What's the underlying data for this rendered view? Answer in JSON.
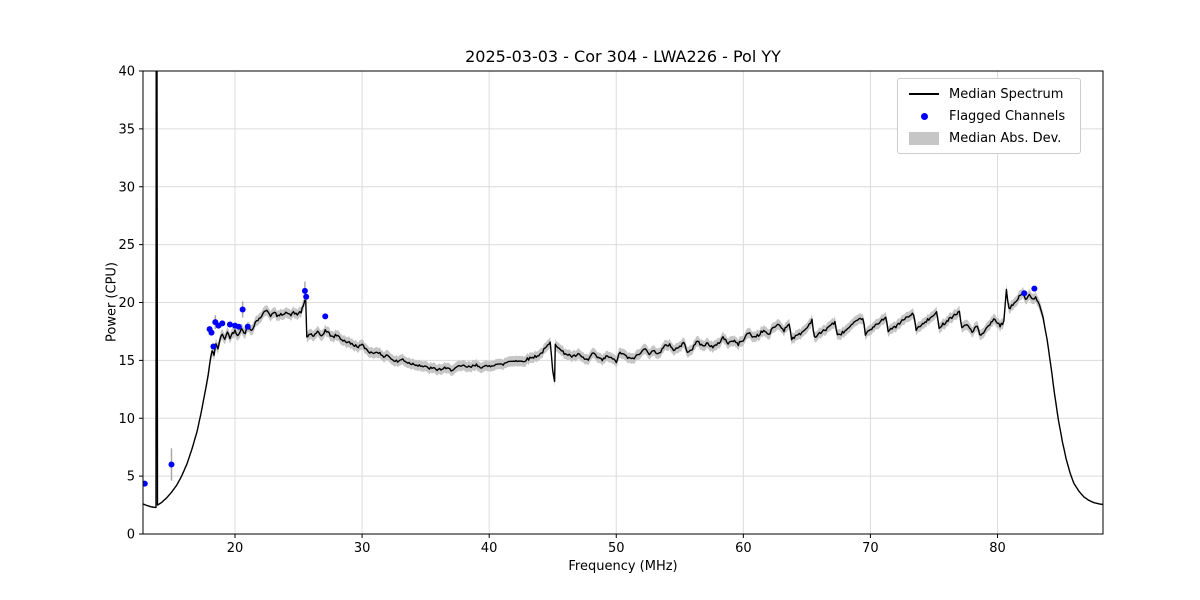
{
  "chart_data": {
    "type": "line",
    "title": "2025-03-03 - Cor 304 - LWA226 - Pol YY",
    "xlabel": "Frequency (MHz)",
    "ylabel": "Power (CPU)",
    "xlim": [
      12.76,
      88.3
    ],
    "ylim": [
      0,
      40
    ],
    "xticks": [
      20,
      30,
      40,
      50,
      60,
      70,
      80
    ],
    "yticks": [
      0,
      5,
      10,
      15,
      20,
      25,
      30,
      35,
      40
    ],
    "grid": true,
    "colors": {
      "median_line": "#000000",
      "flagged": "#0000ff",
      "band": "#c6c6c6",
      "grid": "#dcdcdc",
      "errorbar": "#aaaaaa"
    },
    "legend": {
      "position": "upper right",
      "entries": [
        "Median Spectrum",
        "Flagged Channels",
        "Median Abs. Dev."
      ]
    },
    "noise": {
      "amplitude": 0.13,
      "range": [
        17.8,
        83.6
      ],
      "seed": 42,
      "step": 0.1
    },
    "band": {
      "halfwidth": 0.45,
      "range": [
        17.8,
        83.6
      ],
      "halfwidth_outside": 0.06
    },
    "series": [
      {
        "name": "Median Spectrum",
        "kind": "line",
        "points": [
          [
            12.76,
            2.6
          ],
          [
            13.1,
            2.45
          ],
          [
            13.4,
            2.35
          ],
          [
            13.7,
            2.3
          ],
          [
            13.78,
            2.3
          ],
          [
            13.8,
            41
          ],
          [
            13.86,
            41
          ],
          [
            13.9,
            2.5
          ],
          [
            14.2,
            2.7
          ],
          [
            14.6,
            3.1
          ],
          [
            15.0,
            3.6
          ],
          [
            15.4,
            4.2
          ],
          [
            15.8,
            5.0
          ],
          [
            16.2,
            6.0
          ],
          [
            16.6,
            7.3
          ],
          [
            17.0,
            8.8
          ],
          [
            17.3,
            10.3
          ],
          [
            17.6,
            12.0
          ],
          [
            17.9,
            13.8
          ],
          [
            18.1,
            15.3
          ],
          [
            18.2,
            15.9
          ],
          [
            18.35,
            15.5
          ],
          [
            18.5,
            16.4
          ],
          [
            18.65,
            15.9
          ],
          [
            18.8,
            16.8
          ],
          [
            19.0,
            17.2
          ],
          [
            19.2,
            16.9
          ],
          [
            19.4,
            17.4
          ],
          [
            19.6,
            17.0
          ],
          [
            19.8,
            17.3
          ],
          [
            20.0,
            17.6
          ],
          [
            20.2,
            17.2
          ],
          [
            20.5,
            17.7
          ],
          [
            20.8,
            17.4
          ],
          [
            21.0,
            17.9
          ],
          [
            21.3,
            17.6
          ],
          [
            21.6,
            18.3
          ],
          [
            21.9,
            18.6
          ],
          [
            22.2,
            19.0
          ],
          [
            22.5,
            19.4
          ],
          [
            22.8,
            18.9
          ],
          [
            23.1,
            19.1
          ],
          [
            23.4,
            18.8
          ],
          [
            23.7,
            19.0
          ],
          [
            24.0,
            19.2
          ],
          [
            24.3,
            18.9
          ],
          [
            24.6,
            19.1
          ],
          [
            24.9,
            19.0
          ],
          [
            25.2,
            19.2
          ],
          [
            25.45,
            19.9
          ],
          [
            25.55,
            20.9
          ],
          [
            25.65,
            17.0
          ],
          [
            25.9,
            17.3
          ],
          [
            26.2,
            17.1
          ],
          [
            26.5,
            17.4
          ],
          [
            26.8,
            17.1
          ],
          [
            27.1,
            17.6
          ],
          [
            27.4,
            17.3
          ],
          [
            27.7,
            17.0
          ],
          [
            28.0,
            17.2
          ],
          [
            28.4,
            16.8
          ],
          [
            28.8,
            16.6
          ],
          [
            29.2,
            16.4
          ],
          [
            29.6,
            16.2
          ],
          [
            30.0,
            16.3
          ],
          [
            30.4,
            15.9
          ],
          [
            30.8,
            15.6
          ],
          [
            31.2,
            15.8
          ],
          [
            31.6,
            15.3
          ],
          [
            32.0,
            15.5
          ],
          [
            32.4,
            15.0
          ],
          [
            32.8,
            14.9
          ],
          [
            33.2,
            15.1
          ],
          [
            33.6,
            14.8
          ],
          [
            34.0,
            14.7
          ],
          [
            34.5,
            14.6
          ],
          [
            35.0,
            14.4
          ],
          [
            35.5,
            14.3
          ],
          [
            36.0,
            14.2
          ],
          [
            36.5,
            14.3
          ],
          [
            37.0,
            14.2
          ],
          [
            37.5,
            14.4
          ],
          [
            38.0,
            14.5
          ],
          [
            38.5,
            14.4
          ],
          [
            39.0,
            14.6
          ],
          [
            39.5,
            14.4
          ],
          [
            40.0,
            14.5
          ],
          [
            40.5,
            14.7
          ],
          [
            41.0,
            14.6
          ],
          [
            41.5,
            14.9
          ],
          [
            42.0,
            15.0
          ],
          [
            42.5,
            14.9
          ],
          [
            43.0,
            15.1
          ],
          [
            43.5,
            15.3
          ],
          [
            44.0,
            15.5
          ],
          [
            44.4,
            16.0
          ],
          [
            44.8,
            16.5
          ],
          [
            45.0,
            14.2
          ],
          [
            45.15,
            13.3
          ],
          [
            45.2,
            16.5
          ],
          [
            45.5,
            16.0
          ],
          [
            45.8,
            15.7
          ],
          [
            46.2,
            15.5
          ],
          [
            46.6,
            15.3
          ],
          [
            47.0,
            15.5
          ],
          [
            47.4,
            15.2
          ],
          [
            47.8,
            15.0
          ],
          [
            48.1,
            15.6
          ],
          [
            48.5,
            15.3
          ],
          [
            48.9,
            15.0
          ],
          [
            49.3,
            15.4
          ],
          [
            49.7,
            15.1
          ],
          [
            50.0,
            14.9
          ],
          [
            50.3,
            15.7
          ],
          [
            50.7,
            15.4
          ],
          [
            51.1,
            15.1
          ],
          [
            51.5,
            15.3
          ],
          [
            51.9,
            15.6
          ],
          [
            52.3,
            16.1
          ],
          [
            52.6,
            15.6
          ],
          [
            53.0,
            15.8
          ],
          [
            53.4,
            15.6
          ],
          [
            53.8,
            16.2
          ],
          [
            54.2,
            16.4
          ],
          [
            54.5,
            15.9
          ],
          [
            54.9,
            16.1
          ],
          [
            55.3,
            16.5
          ],
          [
            55.6,
            15.8
          ],
          [
            56.0,
            16.0
          ],
          [
            56.4,
            16.7
          ],
          [
            56.8,
            16.2
          ],
          [
            57.2,
            16.5
          ],
          [
            57.6,
            16.1
          ],
          [
            58.0,
            16.4
          ],
          [
            58.4,
            17.0
          ],
          [
            58.8,
            16.5
          ],
          [
            59.2,
            16.7
          ],
          [
            59.6,
            16.4
          ],
          [
            60.0,
            16.8
          ],
          [
            60.4,
            17.4
          ],
          [
            60.8,
            17.0
          ],
          [
            61.2,
            17.2
          ],
          [
            61.6,
            17.6
          ],
          [
            62.0,
            17.2
          ],
          [
            62.4,
            17.9
          ],
          [
            62.8,
            18.1
          ],
          [
            63.2,
            17.6
          ],
          [
            63.6,
            18.2
          ],
          [
            63.8,
            16.9
          ],
          [
            64.2,
            17.1
          ],
          [
            64.6,
            17.4
          ],
          [
            65.0,
            17.8
          ],
          [
            65.4,
            18.5
          ],
          [
            65.6,
            17.0
          ],
          [
            66.0,
            17.3
          ],
          [
            66.4,
            17.6
          ],
          [
            66.8,
            18.0
          ],
          [
            67.2,
            18.3
          ],
          [
            67.4,
            17.1
          ],
          [
            67.8,
            17.4
          ],
          [
            68.2,
            17.7
          ],
          [
            68.6,
            18.1
          ],
          [
            69.0,
            18.4
          ],
          [
            69.4,
            18.7
          ],
          [
            69.6,
            17.3
          ],
          [
            70.0,
            17.6
          ],
          [
            70.4,
            18.0
          ],
          [
            70.8,
            18.4
          ],
          [
            71.2,
            18.8
          ],
          [
            71.4,
            17.5
          ],
          [
            71.8,
            17.8
          ],
          [
            72.2,
            18.1
          ],
          [
            72.6,
            18.5
          ],
          [
            73.0,
            18.8
          ],
          [
            73.4,
            19.0
          ],
          [
            73.6,
            17.7
          ],
          [
            74.0,
            18.0
          ],
          [
            74.4,
            18.4
          ],
          [
            74.8,
            18.7
          ],
          [
            75.2,
            19.1
          ],
          [
            75.4,
            17.9
          ],
          [
            75.8,
            18.2
          ],
          [
            76.2,
            18.6
          ],
          [
            76.6,
            18.9
          ],
          [
            77.0,
            19.2
          ],
          [
            77.2,
            17.8
          ],
          [
            77.6,
            18.1
          ],
          [
            78.0,
            17.5
          ],
          [
            78.4,
            18.0
          ],
          [
            78.6,
            17.1
          ],
          [
            79.0,
            17.5
          ],
          [
            79.4,
            18.1
          ],
          [
            79.8,
            18.6
          ],
          [
            80.2,
            17.9
          ],
          [
            80.5,
            18.4
          ],
          [
            80.7,
            21.0
          ],
          [
            80.9,
            19.4
          ],
          [
            81.2,
            19.8
          ],
          [
            81.5,
            20.2
          ],
          [
            81.8,
            20.6
          ],
          [
            82.0,
            20.9
          ],
          [
            82.2,
            20.3
          ],
          [
            82.5,
            20.6
          ],
          [
            82.8,
            20.2
          ],
          [
            83.0,
            20.4
          ],
          [
            83.3,
            19.8
          ],
          [
            83.6,
            18.6
          ],
          [
            83.9,
            16.8
          ],
          [
            84.2,
            14.5
          ],
          [
            84.5,
            12.0
          ],
          [
            84.8,
            9.8
          ],
          [
            85.1,
            8.0
          ],
          [
            85.4,
            6.5
          ],
          [
            85.7,
            5.3
          ],
          [
            86.0,
            4.4
          ],
          [
            86.4,
            3.7
          ],
          [
            86.8,
            3.2
          ],
          [
            87.2,
            2.9
          ],
          [
            87.6,
            2.7
          ],
          [
            88.0,
            2.6
          ],
          [
            88.3,
            2.55
          ]
        ]
      },
      {
        "name": "Flagged Channels",
        "kind": "scatter",
        "points": [
          [
            12.9,
            4.35
          ],
          [
            15.0,
            6.0,
            1.4
          ],
          [
            18.0,
            17.7
          ],
          [
            18.15,
            17.4
          ],
          [
            18.3,
            16.2
          ],
          [
            18.45,
            18.3,
            0.6
          ],
          [
            18.7,
            18.0
          ],
          [
            19.0,
            18.2
          ],
          [
            19.6,
            18.1
          ],
          [
            20.0,
            18.0
          ],
          [
            20.3,
            17.9
          ],
          [
            20.6,
            19.4,
            0.7
          ],
          [
            21.0,
            17.9
          ],
          [
            25.5,
            21.0,
            0.8
          ],
          [
            25.6,
            20.5
          ],
          [
            27.1,
            18.8
          ],
          [
            82.1,
            20.8
          ],
          [
            82.9,
            21.2
          ]
        ]
      }
    ]
  }
}
